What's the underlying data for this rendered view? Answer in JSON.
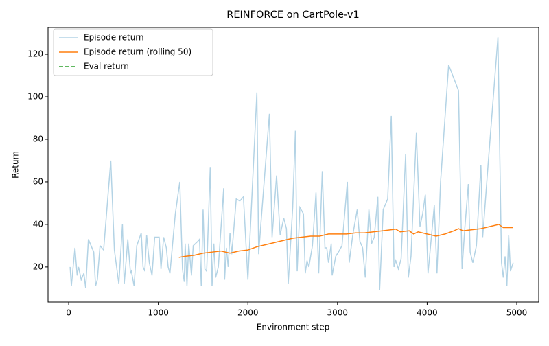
{
  "chart_data": {
    "type": "line",
    "title": "REINFORCE on CartPole-v1",
    "x_label": "Environment step",
    "y_label": "Return",
    "xlim": [
      -230,
      5245
    ],
    "ylim": [
      3.5,
      132.6
    ],
    "xticks": [
      0,
      1000,
      2000,
      3000,
      4000,
      5000
    ],
    "yticks": [
      20,
      40,
      60,
      80,
      100,
      120
    ],
    "legend": "upper left",
    "grid": false,
    "series": [
      {
        "name": "Episode return",
        "color": "#b3d3e5",
        "linestyle": "solid",
        "x": [
          16,
          30,
          70,
          95,
          110,
          140,
          170,
          190,
          220,
          280,
          300,
          320,
          350,
          390,
          470,
          510,
          560,
          600,
          620,
          660,
          690,
          700,
          730,
          760,
          810,
          830,
          850,
          870,
          900,
          930,
          960,
          1010,
          1030,
          1060,
          1090,
          1110,
          1130,
          1190,
          1240,
          1270,
          1290,
          1300,
          1320,
          1340,
          1370,
          1390,
          1440,
          1460,
          1480,
          1500,
          1520,
          1540,
          1580,
          1600,
          1620,
          1640,
          1670,
          1730,
          1740,
          1760,
          1780,
          1800,
          1820,
          1870,
          1910,
          1950,
          2000,
          2030,
          2100,
          2120,
          2150,
          2240,
          2270,
          2320,
          2360,
          2400,
          2430,
          2450,
          2500,
          2530,
          2550,
          2580,
          2620,
          2640,
          2660,
          2680,
          2720,
          2760,
          2790,
          2830,
          2860,
          2880,
          2900,
          2930,
          2940,
          2980,
          3010,
          3050,
          3110,
          3130,
          3170,
          3220,
          3250,
          3280,
          3310,
          3350,
          3380,
          3410,
          3450,
          3470,
          3510,
          3560,
          3600,
          3630,
          3650,
          3680,
          3710,
          3760,
          3790,
          3820,
          3880,
          3920,
          3950,
          3980,
          4010,
          4080,
          4110,
          4150,
          4240,
          4350,
          4390,
          4420,
          4460,
          4480,
          4510,
          4550,
          4600,
          4620,
          4680,
          4790,
          4830,
          4850,
          4870,
          4890,
          4910,
          4930,
          4960
        ],
        "values": [
          20,
          11,
          29,
          16,
          20,
          14,
          17,
          10,
          33,
          27,
          11,
          14,
          30,
          28,
          70,
          28,
          12,
          40,
          12,
          33,
          17,
          18,
          11,
          30,
          36,
          20,
          18,
          35,
          22,
          16,
          34,
          34,
          19,
          34,
          29,
          20,
          17,
          45,
          60,
          19,
          13,
          31,
          11,
          31,
          16,
          30,
          32,
          33,
          11,
          47,
          19,
          18,
          67,
          11,
          31,
          15,
          20,
          57,
          14,
          29,
          20,
          36,
          26,
          52,
          51,
          53,
          14,
          40,
          102,
          26,
          43,
          92,
          34,
          63,
          35,
          43,
          38,
          12,
          48,
          84,
          18,
          48,
          45,
          17,
          23,
          20,
          30,
          55,
          17,
          65,
          29,
          29,
          22,
          31,
          16,
          25,
          27,
          30,
          60,
          22,
          35,
          47,
          32,
          29,
          15,
          47,
          31,
          34,
          53,
          9,
          47,
          52,
          91,
          20,
          23,
          19,
          24,
          73,
          15,
          25,
          83,
          39,
          45,
          54,
          17,
          49,
          17,
          60,
          115,
          103,
          19,
          38,
          59,
          27,
          22,
          30,
          68,
          34,
          68,
          128,
          22,
          15,
          25,
          11,
          35,
          18,
          22
        ]
      },
      {
        "name": "Episode return (rolling 50)",
        "color": "#ff7f0e",
        "linestyle": "solid",
        "x": [
          1230,
          1300,
          1400,
          1500,
          1600,
          1700,
          1800,
          1900,
          2000,
          2100,
          2200,
          2300,
          2400,
          2500,
          2600,
          2700,
          2800,
          2900,
          3000,
          3100,
          3200,
          3300,
          3400,
          3500,
          3600,
          3650,
          3700,
          3800,
          3850,
          3900,
          4000,
          4100,
          4200,
          4300,
          4350,
          4400,
          4500,
          4600,
          4700,
          4800,
          4850,
          4960
        ],
        "values": [
          24.5,
          25,
          25.5,
          26.5,
          27,
          27.5,
          26.5,
          27.5,
          28,
          29.5,
          30.5,
          31.5,
          32.5,
          33.5,
          34,
          34.5,
          34.5,
          35.5,
          35.5,
          35.5,
          36,
          36,
          36.5,
          37,
          37.5,
          37.8,
          36.5,
          37,
          35.5,
          36.5,
          35.5,
          34.5,
          35.5,
          37,
          38,
          37,
          37.5,
          38,
          39,
          40,
          38.5,
          38.5
        ]
      },
      {
        "name": "Eval return",
        "color": "#2ca02c",
        "linestyle": "dashed",
        "x": [],
        "values": []
      }
    ]
  }
}
